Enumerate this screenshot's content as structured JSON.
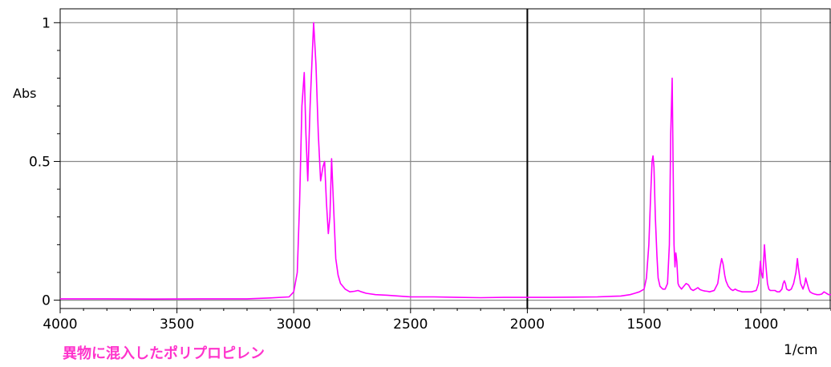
{
  "chart_data": {
    "type": "line",
    "caption": "異物に混入したポリプロピレン",
    "xlabel": "1/cm",
    "ylabel": "Abs",
    "xlim": [
      4000,
      700
    ],
    "ylim": [
      -0.03,
      1.05
    ],
    "x_ticks": [
      {
        "value": 4000,
        "label": "4000"
      },
      {
        "value": 3500,
        "label": "3500"
      },
      {
        "value": 3000,
        "label": "3000"
      },
      {
        "value": 2500,
        "label": "2500"
      },
      {
        "value": 2000,
        "label": "2000"
      },
      {
        "value": 1500,
        "label": "1500"
      },
      {
        "value": 1000,
        "label": "1000"
      }
    ],
    "y_ticks": [
      {
        "value": 0,
        "label": "0"
      },
      {
        "value": 0.5,
        "label": "0.5"
      },
      {
        "value": 1,
        "label": "1"
      }
    ],
    "grid": true,
    "colors": {
      "series": "#ff00ff",
      "caption": "#ff33cc",
      "grid": "#888888",
      "axis": "#000000"
    },
    "series": [
      {
        "x": [
          4000,
          3800,
          3600,
          3400,
          3200,
          3100,
          3020,
          3000,
          2985,
          2975,
          2965,
          2955,
          2948,
          2940,
          2930,
          2920,
          2915,
          2905,
          2895,
          2885,
          2875,
          2868,
          2860,
          2852,
          2845,
          2838,
          2830,
          2820,
          2810,
          2800,
          2780,
          2760,
          2740,
          2725,
          2710,
          2690,
          2650,
          2600,
          2500,
          2400,
          2300,
          2200,
          2100,
          2000,
          1900,
          1800,
          1700,
          1600,
          1560,
          1540,
          1520,
          1500,
          1490,
          1480,
          1472,
          1466,
          1462,
          1458,
          1452,
          1445,
          1440,
          1432,
          1420,
          1410,
          1400,
          1392,
          1386,
          1380,
          1376,
          1372,
          1368,
          1364,
          1360,
          1355,
          1350,
          1345,
          1340,
          1330,
          1320,
          1310,
          1300,
          1290,
          1280,
          1270,
          1260,
          1250,
          1240,
          1230,
          1220,
          1200,
          1185,
          1175,
          1168,
          1162,
          1155,
          1150,
          1140,
          1130,
          1120,
          1110,
          1100,
          1080,
          1060,
          1040,
          1020,
          1010,
          1002,
          998,
          992,
          985,
          978,
          972,
          966,
          960,
          950,
          940,
          930,
          920,
          910,
          905,
          900,
          895,
          890,
          880,
          870,
          860,
          850,
          844,
          840,
          830,
          820,
          812,
          808,
          802,
          795,
          790,
          780,
          770,
          760,
          750,
          740,
          730,
          720,
          710,
          700
        ],
        "y": [
          0.005,
          0.005,
          0.004,
          0.005,
          0.005,
          0.008,
          0.012,
          0.03,
          0.1,
          0.35,
          0.7,
          0.82,
          0.6,
          0.43,
          0.7,
          0.9,
          1.0,
          0.85,
          0.6,
          0.43,
          0.48,
          0.5,
          0.35,
          0.24,
          0.3,
          0.51,
          0.35,
          0.15,
          0.09,
          0.06,
          0.04,
          0.03,
          0.032,
          0.035,
          0.03,
          0.025,
          0.02,
          0.018,
          0.012,
          0.012,
          0.01,
          0.009,
          0.01,
          0.01,
          0.01,
          0.011,
          0.012,
          0.015,
          0.02,
          0.025,
          0.03,
          0.04,
          0.08,
          0.2,
          0.38,
          0.5,
          0.52,
          0.48,
          0.3,
          0.16,
          0.08,
          0.05,
          0.04,
          0.04,
          0.06,
          0.2,
          0.6,
          0.8,
          0.5,
          0.2,
          0.12,
          0.17,
          0.14,
          0.06,
          0.05,
          0.045,
          0.04,
          0.05,
          0.06,
          0.055,
          0.04,
          0.035,
          0.04,
          0.045,
          0.038,
          0.035,
          0.033,
          0.032,
          0.03,
          0.035,
          0.06,
          0.12,
          0.15,
          0.13,
          0.09,
          0.07,
          0.05,
          0.04,
          0.035,
          0.04,
          0.035,
          0.03,
          0.03,
          0.03,
          0.035,
          0.06,
          0.14,
          0.1,
          0.08,
          0.2,
          0.12,
          0.06,
          0.04,
          0.035,
          0.035,
          0.035,
          0.03,
          0.03,
          0.04,
          0.06,
          0.07,
          0.06,
          0.04,
          0.035,
          0.04,
          0.06,
          0.1,
          0.15,
          0.12,
          0.06,
          0.04,
          0.06,
          0.08,
          0.06,
          0.04,
          0.03,
          0.025,
          0.022,
          0.02,
          0.02,
          0.022,
          0.03,
          0.025,
          0.02,
          0.02
        ]
      }
    ]
  }
}
